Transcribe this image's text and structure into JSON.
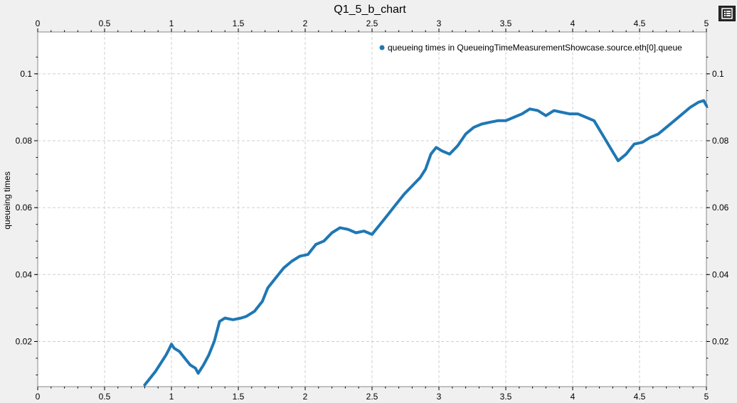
{
  "chart_data": {
    "type": "line",
    "title": "Q1_5_b_chart",
    "ylabel": "queueing times",
    "xlabel": "",
    "xlim": [
      0,
      5
    ],
    "ylim": [
      0.0065,
      0.1125
    ],
    "x_ticks": [
      "0",
      "0.5",
      "1",
      "1.5",
      "2",
      "2.5",
      "3",
      "3.5",
      "4",
      "4.5",
      "5"
    ],
    "y_ticks": [
      "0.02",
      "0.04",
      "0.06",
      "0.08",
      "0.1"
    ],
    "grid": true,
    "legend_position": "top-right",
    "series": [
      {
        "name": "queueing times in QueueingTimeMeasurementShowcase.source.eth[0].queue",
        "color": "#1f77b4",
        "points": [
          [
            0.8,
            0.007
          ],
          [
            0.84,
            0.009
          ],
          [
            0.88,
            0.011
          ],
          [
            0.92,
            0.0135
          ],
          [
            0.96,
            0.016
          ],
          [
            0.98,
            0.0175
          ],
          [
            1.0,
            0.0192
          ],
          [
            1.02,
            0.018
          ],
          [
            1.06,
            0.017
          ],
          [
            1.1,
            0.015
          ],
          [
            1.14,
            0.013
          ],
          [
            1.18,
            0.012
          ],
          [
            1.2,
            0.0105
          ],
          [
            1.24,
            0.013
          ],
          [
            1.28,
            0.016
          ],
          [
            1.32,
            0.02
          ],
          [
            1.36,
            0.026
          ],
          [
            1.4,
            0.027
          ],
          [
            1.46,
            0.0265
          ],
          [
            1.52,
            0.027
          ],
          [
            1.56,
            0.0275
          ],
          [
            1.62,
            0.029
          ],
          [
            1.68,
            0.032
          ],
          [
            1.72,
            0.036
          ],
          [
            1.78,
            0.039
          ],
          [
            1.84,
            0.042
          ],
          [
            1.9,
            0.044
          ],
          [
            1.96,
            0.0455
          ],
          [
            2.02,
            0.046
          ],
          [
            2.08,
            0.049
          ],
          [
            2.14,
            0.05
          ],
          [
            2.2,
            0.0525
          ],
          [
            2.26,
            0.054
          ],
          [
            2.32,
            0.0535
          ],
          [
            2.38,
            0.0525
          ],
          [
            2.44,
            0.053
          ],
          [
            2.5,
            0.052
          ],
          [
            2.56,
            0.055
          ],
          [
            2.62,
            0.058
          ],
          [
            2.68,
            0.061
          ],
          [
            2.74,
            0.064
          ],
          [
            2.8,
            0.0665
          ],
          [
            2.86,
            0.069
          ],
          [
            2.9,
            0.0715
          ],
          [
            2.94,
            0.076
          ],
          [
            2.98,
            0.078
          ],
          [
            3.02,
            0.077
          ],
          [
            3.08,
            0.076
          ],
          [
            3.14,
            0.0785
          ],
          [
            3.2,
            0.082
          ],
          [
            3.26,
            0.084
          ],
          [
            3.32,
            0.085
          ],
          [
            3.38,
            0.0855
          ],
          [
            3.44,
            0.086
          ],
          [
            3.5,
            0.086
          ],
          [
            3.56,
            0.087
          ],
          [
            3.62,
            0.088
          ],
          [
            3.68,
            0.0895
          ],
          [
            3.74,
            0.089
          ],
          [
            3.8,
            0.0875
          ],
          [
            3.86,
            0.089
          ],
          [
            3.92,
            0.0885
          ],
          [
            3.98,
            0.088
          ],
          [
            4.04,
            0.088
          ],
          [
            4.1,
            0.087
          ],
          [
            4.16,
            0.086
          ],
          [
            4.22,
            0.082
          ],
          [
            4.28,
            0.078
          ],
          [
            4.34,
            0.074
          ],
          [
            4.4,
            0.076
          ],
          [
            4.46,
            0.079
          ],
          [
            4.52,
            0.0795
          ],
          [
            4.58,
            0.081
          ],
          [
            4.64,
            0.082
          ],
          [
            4.7,
            0.084
          ],
          [
            4.76,
            0.086
          ],
          [
            4.82,
            0.088
          ],
          [
            4.88,
            0.09
          ],
          [
            4.94,
            0.0915
          ],
          [
            4.98,
            0.092
          ],
          [
            5.0,
            0.0905
          ]
        ]
      }
    ]
  }
}
